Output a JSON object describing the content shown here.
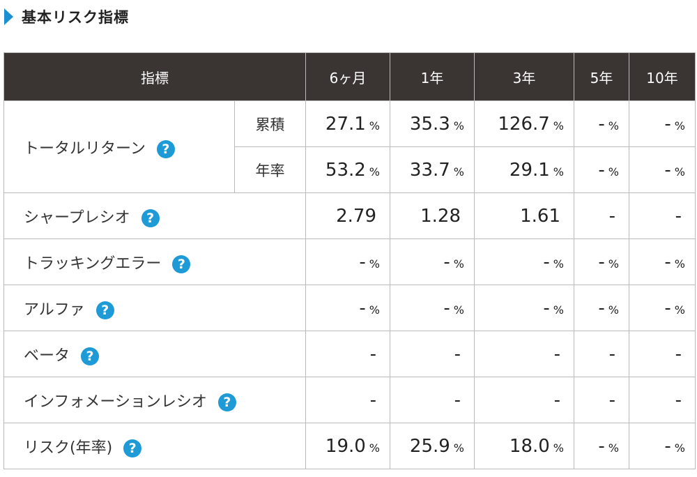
{
  "title": "基本リスク指標",
  "header": {
    "indicator": "指標",
    "periods": [
      "6ヶ月",
      "1年",
      "3年",
      "5年",
      "10年"
    ]
  },
  "help_glyph": "?",
  "rows": [
    {
      "name": "トータルリターン",
      "sub": [
        {
          "label": "累積",
          "values": [
            {
              "v": "27.1",
              "u": "%"
            },
            {
              "v": "35.3",
              "u": "%"
            },
            {
              "v": "126.7",
              "u": "%"
            },
            {
              "v": "-",
              "u": "%"
            },
            {
              "v": "-",
              "u": "%"
            }
          ]
        },
        {
          "label": "年率",
          "values": [
            {
              "v": "53.2",
              "u": "%"
            },
            {
              "v": "33.7",
              "u": "%"
            },
            {
              "v": "29.1",
              "u": "%"
            },
            {
              "v": "-",
              "u": "%"
            },
            {
              "v": "-",
              "u": "%"
            }
          ]
        }
      ]
    },
    {
      "name": "シャープレシオ",
      "values": [
        {
          "v": "2.79",
          "u": ""
        },
        {
          "v": "1.28",
          "u": ""
        },
        {
          "v": "1.61",
          "u": ""
        },
        {
          "v": "-",
          "u": ""
        },
        {
          "v": "-",
          "u": ""
        }
      ]
    },
    {
      "name": "トラッキングエラー",
      "values": [
        {
          "v": "-",
          "u": "%"
        },
        {
          "v": "-",
          "u": "%"
        },
        {
          "v": "-",
          "u": "%"
        },
        {
          "v": "-",
          "u": "%"
        },
        {
          "v": "-",
          "u": "%"
        }
      ]
    },
    {
      "name": "アルファ",
      "values": [
        {
          "v": "-",
          "u": "%"
        },
        {
          "v": "-",
          "u": "%"
        },
        {
          "v": "-",
          "u": "%"
        },
        {
          "v": "-",
          "u": "%"
        },
        {
          "v": "-",
          "u": "%"
        }
      ]
    },
    {
      "name": "ベータ",
      "values": [
        {
          "v": "-",
          "u": ""
        },
        {
          "v": "-",
          "u": ""
        },
        {
          "v": "-",
          "u": ""
        },
        {
          "v": "-",
          "u": ""
        },
        {
          "v": "-",
          "u": ""
        }
      ]
    },
    {
      "name": "インフォメーションレシオ",
      "values": [
        {
          "v": "-",
          "u": ""
        },
        {
          "v": "-",
          "u": ""
        },
        {
          "v": "-",
          "u": ""
        },
        {
          "v": "-",
          "u": ""
        },
        {
          "v": "-",
          "u": ""
        }
      ]
    },
    {
      "name": "リスク(年率)",
      "values": [
        {
          "v": "19.0",
          "u": "%"
        },
        {
          "v": "25.9",
          "u": "%"
        },
        {
          "v": "18.0",
          "u": "%"
        },
        {
          "v": "-",
          "u": "%"
        },
        {
          "v": "-",
          "u": "%"
        }
      ]
    }
  ],
  "colors": {
    "accent": "#1a8fd3",
    "header_bg": "#3a3533",
    "help_icon": "#1e9ad6"
  }
}
